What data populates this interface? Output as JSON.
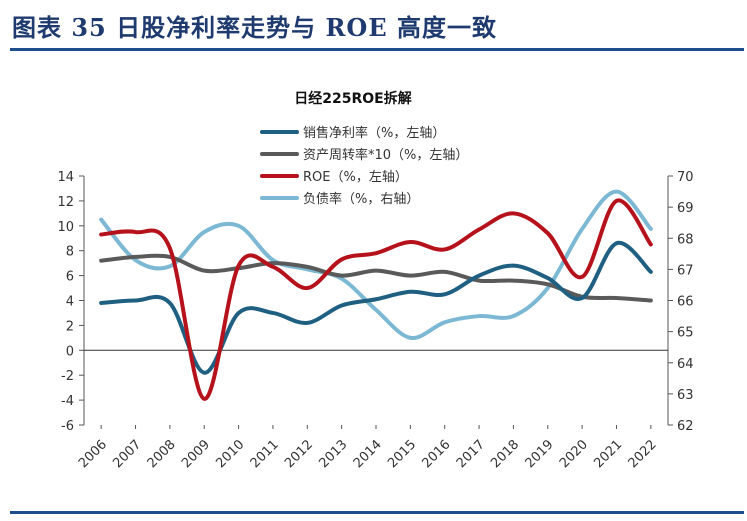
{
  "figure": {
    "title": "图表 35    日股净利率走势与 ROE 高度一致"
  },
  "chart_data": {
    "type": "line",
    "title": "日经225ROE拆解",
    "x": [
      "2006",
      "2007",
      "2008",
      "2009",
      "2010",
      "2011",
      "2012",
      "2013",
      "2014",
      "2015",
      "2016",
      "2017",
      "2018",
      "2019",
      "2020",
      "2021",
      "2022"
    ],
    "left_axis": {
      "ylim": [
        -6,
        14
      ],
      "ticks": [
        -6,
        -4,
        -2,
        0,
        2,
        4,
        6,
        8,
        10,
        12,
        14
      ]
    },
    "right_axis": {
      "ylim": [
        62,
        70
      ],
      "ticks": [
        62,
        63,
        64,
        65,
        66,
        67,
        68,
        69,
        70
      ]
    },
    "legend_position": "top-left",
    "grid": false,
    "series": [
      {
        "name": "销售净利率（%，左轴）",
        "axis": "left",
        "color": "#1f5f82",
        "values": [
          3.8,
          4.0,
          3.8,
          -1.8,
          3.0,
          3.0,
          2.2,
          3.6,
          4.1,
          4.7,
          4.5,
          6.0,
          6.8,
          5.8,
          4.2,
          8.6,
          6.3
        ]
      },
      {
        "name": "资产周转率*10（%，左轴）",
        "axis": "left",
        "color": "#5a5a5a",
        "values": [
          7.2,
          7.5,
          7.5,
          6.4,
          6.6,
          7.0,
          6.7,
          6.0,
          6.4,
          6.0,
          6.3,
          5.6,
          5.6,
          5.3,
          4.3,
          4.2,
          4.0
        ]
      },
      {
        "name": "ROE（%，左轴）",
        "axis": "left",
        "color": "#b5121b",
        "values": [
          9.3,
          9.5,
          8.2,
          -3.9,
          6.8,
          6.7,
          5.0,
          7.3,
          7.8,
          8.7,
          8.1,
          9.7,
          11.0,
          9.4,
          5.9,
          12.0,
          8.5
        ]
      },
      {
        "name": "负债率（%，右轴）",
        "axis": "right",
        "color": "#7cb8d4",
        "values": [
          68.6,
          67.3,
          67.1,
          68.2,
          68.4,
          67.3,
          67.0,
          66.7,
          65.7,
          64.8,
          65.3,
          65.5,
          65.5,
          66.4,
          68.3,
          69.5,
          68.3
        ]
      }
    ]
  }
}
